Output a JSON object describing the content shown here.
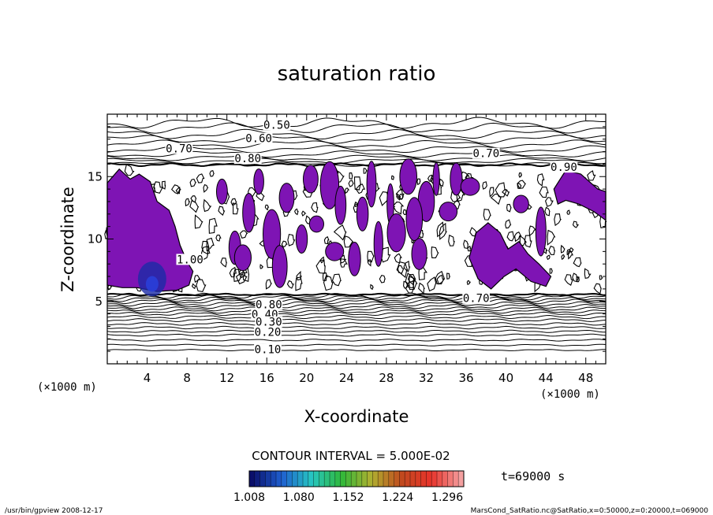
{
  "chart_data": {
    "type": "heatmap",
    "title": "saturation ratio",
    "xlabel": "X-coordinate",
    "ylabel": "Z-coordinate",
    "x_unit": "(×1000 m)",
    "y_unit": "(×1000 m)",
    "xlim": [
      0,
      50
    ],
    "ylim": [
      0,
      20
    ],
    "x_ticks": [
      "4",
      "8",
      "12",
      "16",
      "20",
      "24",
      "28",
      "32",
      "36",
      "40",
      "44",
      "48"
    ],
    "y_ticks": [
      "5",
      "10",
      "15"
    ],
    "contour_interval_text": "CONTOUR INTERVAL = 5.000E-02",
    "time_text": "t=69000 s",
    "colorbar": {
      "labels": [
        "1.008",
        "1.080",
        "1.152",
        "1.224",
        "1.296"
      ],
      "min": 1.008,
      "max": 1.32,
      "colors": [
        "#0b0f6b",
        "#1f5fd0",
        "#27c6c2",
        "#2fb83a",
        "#b0b030",
        "#c04a1e",
        "#e8332b",
        "#f4a0a0"
      ]
    },
    "contour_labels": [
      {
        "text": "0.50",
        "x": 17.0,
        "y": 19.1
      },
      {
        "text": "0.60",
        "x": 15.2,
        "y": 18.0
      },
      {
        "text": "0.70",
        "x": 7.2,
        "y": 17.2
      },
      {
        "text": "0.80",
        "x": 14.1,
        "y": 16.4
      },
      {
        "text": "0.70",
        "x": 38.0,
        "y": 16.8
      },
      {
        "text": "0.90",
        "x": 45.8,
        "y": 15.7
      },
      {
        "text": "1.00",
        "x": 8.3,
        "y": 8.3
      },
      {
        "text": "0.80",
        "x": 16.2,
        "y": 4.7
      },
      {
        "text": "0.70",
        "x": 37.0,
        "y": 5.2
      },
      {
        "text": "0.40",
        "x": 15.8,
        "y": 3.9
      },
      {
        "text": "0.30",
        "x": 16.2,
        "y": 3.3
      },
      {
        "text": "0.20",
        "x": 16.1,
        "y": 2.5
      },
      {
        "text": "0.10",
        "x": 16.1,
        "y": 1.1
      }
    ],
    "shaded_color": "#7e14b4",
    "core_color": "#1b2aa6"
  },
  "footer": {
    "left": "/usr/bin/gpview  2008-12-17",
    "right": "MarsCond_SatRatio.nc@SatRatio,x=0:50000,z=0:20000,t=069000"
  }
}
